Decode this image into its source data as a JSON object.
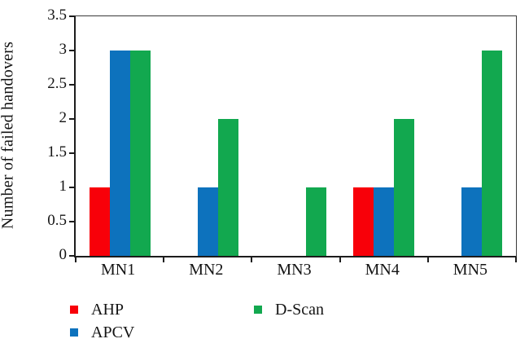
{
  "figure": {
    "background": "#ffffff",
    "axis_color": "#1c1c1c"
  },
  "chart_data": {
    "type": "bar",
    "title": "",
    "xlabel": "",
    "ylabel": "Number of failed handovers",
    "categories": [
      "MN1",
      "MN2",
      "MN3",
      "MN4",
      "MN5"
    ],
    "series": [
      {
        "name": "AHP",
        "color": "#f80009",
        "values": [
          1,
          0,
          0,
          1,
          0
        ]
      },
      {
        "name": "APCV",
        "color": "#0d72bd",
        "values": [
          3,
          1,
          0,
          1,
          1
        ]
      },
      {
        "name": "D-Scan",
        "color": "#12a84f",
        "values": [
          3,
          2,
          1,
          2,
          3
        ]
      }
    ],
    "ylim": [
      0,
      3.5
    ],
    "yticks": [
      0,
      0.5,
      1,
      1.5,
      2,
      2.5,
      3,
      3.5
    ],
    "ytick_labels": [
      "0",
      "0.5",
      "1",
      "1.5",
      "2",
      "2.5",
      "3",
      "3.5"
    ],
    "grid": false,
    "legend_position": "bottom-left",
    "legend_columns": [
      [
        0,
        1
      ],
      [
        2
      ]
    ]
  }
}
